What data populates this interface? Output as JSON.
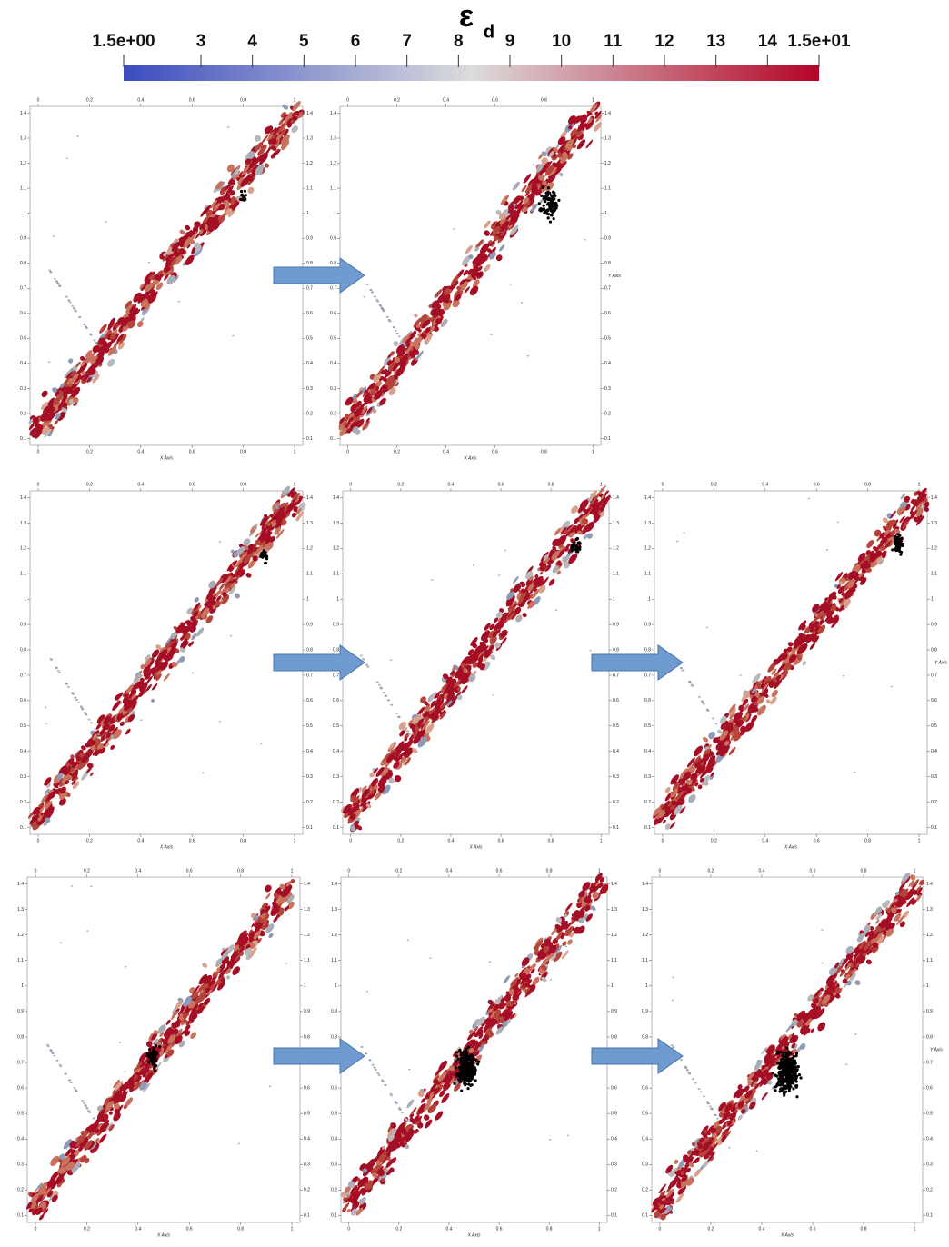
{
  "chart_data": {
    "type": "colorbar",
    "title": "ε",
    "title_subscript": "d",
    "xlim": [
      1.5,
      15
    ],
    "xticks": [
      {
        "value": 1.5,
        "label": "1.5e+00"
      },
      3,
      4,
      5,
      6,
      7,
      8,
      9,
      10,
      11,
      12,
      13,
      14,
      {
        "value": 15,
        "label": "1.5e+01"
      }
    ],
    "colors": [
      "#3b4cc0",
      "#dcdcdc",
      "#b40426"
    ]
  },
  "panel_axes": {
    "xticks": [
      0,
      0.2,
      0.4,
      0.6,
      0.8,
      1
    ],
    "yticks": [
      0.1,
      0.2,
      0.3,
      0.4,
      0.5,
      0.6,
      0.7,
      0.8,
      0.9,
      1,
      1.1,
      1.2,
      1.3,
      1.4
    ],
    "x_label": "X Axis",
    "y_label": "Y Axis"
  }
}
